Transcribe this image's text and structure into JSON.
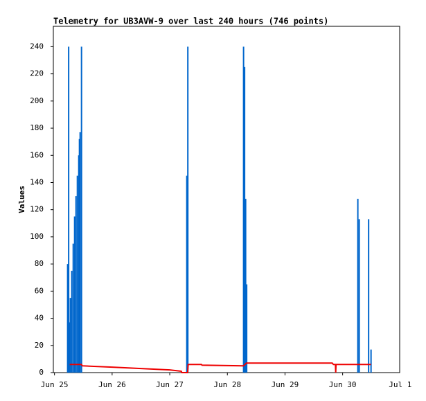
{
  "chart_data": {
    "type": "combo",
    "title": "Telemetry for UB3AVW-9 over last 240 hours (746 points)",
    "ylabel": "Values",
    "xlim": [
      -0.02,
      5.99
    ],
    "xticks": [
      {
        "value": 0,
        "label": "Jun 25"
      },
      {
        "value": 1,
        "label": "Jun 26"
      },
      {
        "value": 2,
        "label": "Jun 27"
      },
      {
        "value": 3,
        "label": "Jun 28"
      },
      {
        "value": 4,
        "label": "Jun 29"
      },
      {
        "value": 5,
        "label": "Jun 30"
      },
      {
        "value": 6,
        "label": "Jul 1"
      }
    ],
    "ylim": [
      0,
      255
    ],
    "yticks": [
      0,
      20,
      40,
      60,
      80,
      100,
      120,
      140,
      160,
      180,
      200,
      220,
      240
    ],
    "grid": false,
    "series": [
      {
        "type": "bar",
        "color": "#0066cc",
        "x": [
          0.228,
          0.246,
          0.264,
          0.276,
          0.3,
          0.325,
          0.349,
          0.373,
          0.397,
          0.421,
          0.433,
          0.445,
          0.469,
          2.296,
          2.314,
          3.281,
          3.299,
          3.317,
          3.335,
          5.264,
          5.288,
          5.451,
          5.493
        ],
        "values": [
          80,
          240,
          37,
          55,
          75,
          95,
          115,
          130,
          145,
          160,
          172,
          177,
          240,
          145,
          240,
          240,
          225,
          128,
          65,
          128,
          113,
          113,
          17
        ]
      },
      {
        "type": "line",
        "color": "#ee0000",
        "x": [
          0.264,
          0.469,
          0.481,
          1.0,
          1.5,
          2.0,
          2.2,
          2.21,
          2.31,
          2.32,
          2.55,
          2.56,
          3.28,
          3.33,
          4.82,
          4.84,
          4.875,
          4.88,
          4.885,
          5.49
        ],
        "values": [
          6,
          6,
          5,
          4,
          3,
          2,
          1,
          0,
          0,
          6,
          6,
          5.5,
          5,
          7,
          7,
          6,
          6,
          0,
          6,
          6
        ]
      }
    ]
  }
}
